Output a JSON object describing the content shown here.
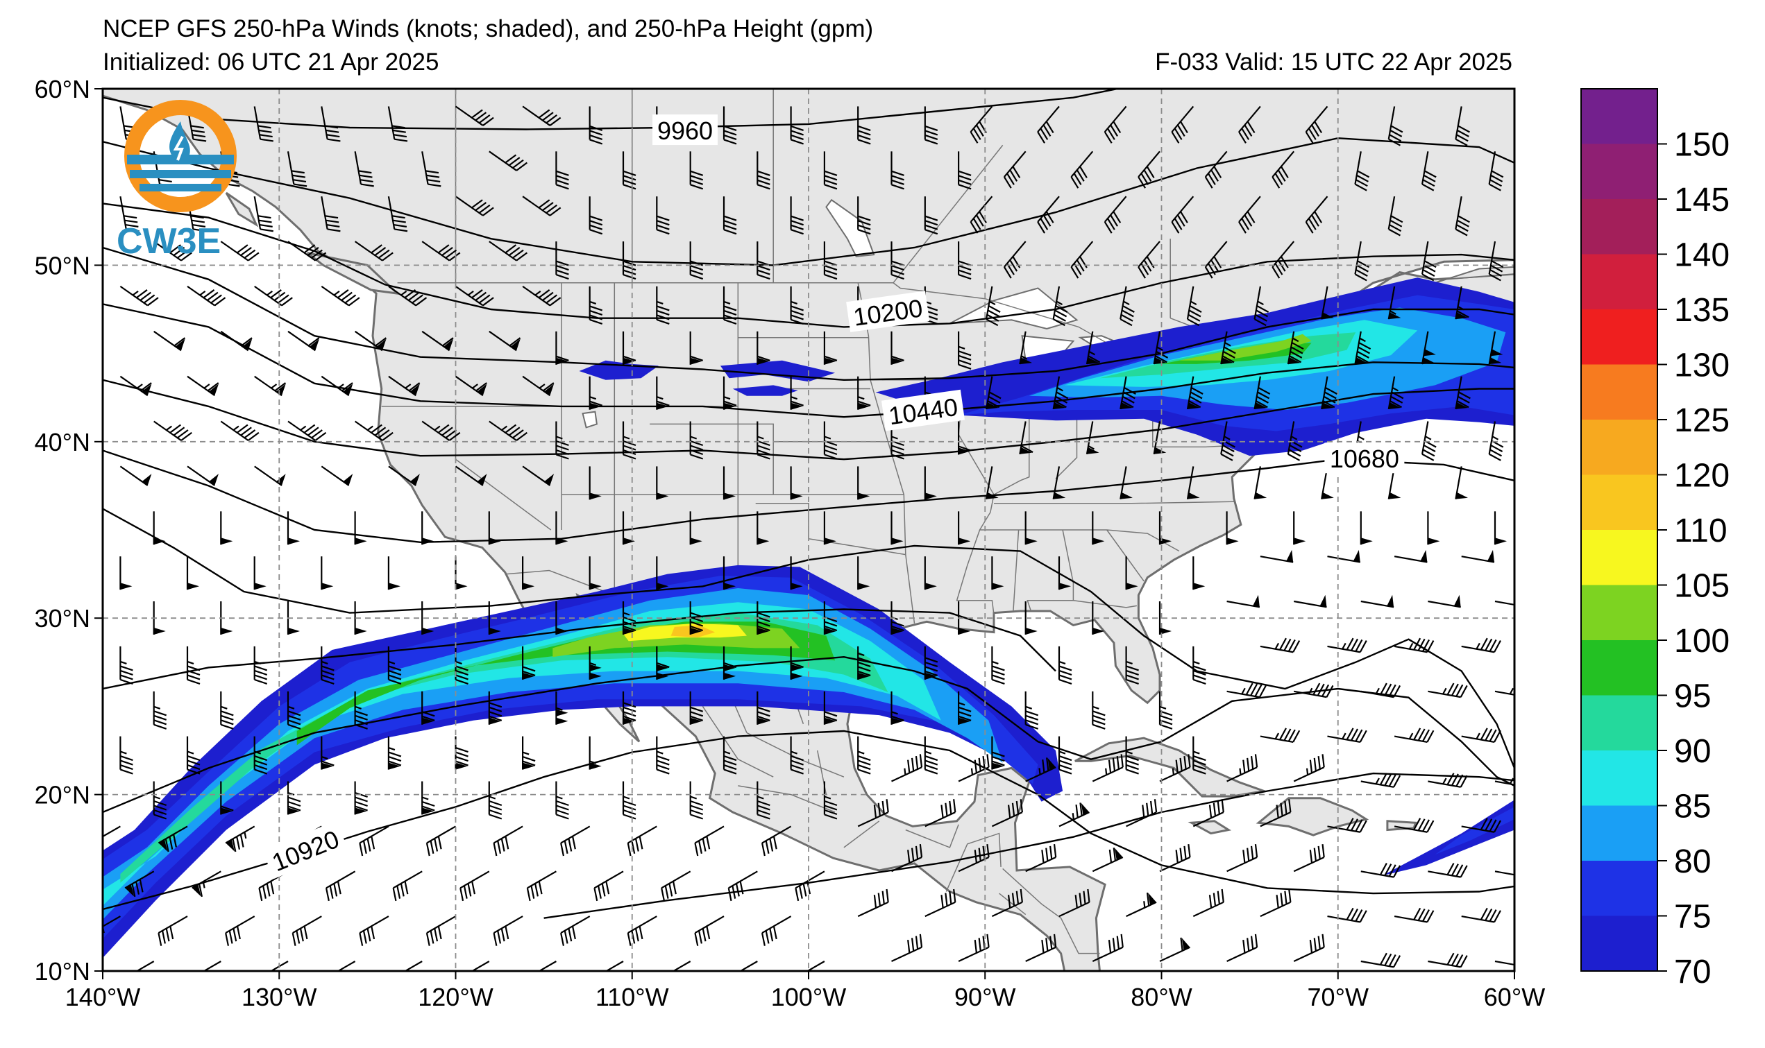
{
  "header": {
    "title": "NCEP GFS 250-hPa Winds (knots; shaded), and 250-hPa Height (gpm)",
    "initialized": "Initialized: 06 UTC 21 Apr 2025",
    "valid": "F-033  Valid: 15 UTC 22 Apr 2025"
  },
  "logo": {
    "text": "CW3E",
    "colors": {
      "orange": "#f7941d",
      "blue": "#2a8fc1"
    }
  },
  "map": {
    "extent": {
      "lon_min": -140,
      "lon_max": -60,
      "lat_min": 10,
      "lat_max": 60
    },
    "lon_ticks": [
      {
        "value": -140,
        "label": "140°W"
      },
      {
        "value": -130,
        "label": "130°W"
      },
      {
        "value": -120,
        "label": "120°W"
      },
      {
        "value": -110,
        "label": "110°W"
      },
      {
        "value": -100,
        "label": "100°W"
      },
      {
        "value": -90,
        "label": "90°W"
      },
      {
        "value": -80,
        "label": "80°W"
      },
      {
        "value": -70,
        "label": "70°W"
      },
      {
        "value": -60,
        "label": "60°W"
      }
    ],
    "lat_ticks": [
      {
        "value": 60,
        "label": "60°N"
      },
      {
        "value": 50,
        "label": "50°N"
      },
      {
        "value": 40,
        "label": "40°N"
      },
      {
        "value": 30,
        "label": "30°N"
      },
      {
        "value": 20,
        "label": "20°N"
      },
      {
        "value": 10,
        "label": "10°N"
      }
    ],
    "gridlines": true,
    "colors": {
      "ocean": "#ffffff",
      "land": "#e6e6e6",
      "coast": "#6e6e6e",
      "grid": "#8c8c8c"
    },
    "height_contour_labels": [
      {
        "value": "9960",
        "lon": -107,
        "lat": 57.6
      },
      {
        "value": "10200",
        "lon": -95.5,
        "lat": 47.3
      },
      {
        "value": "10440",
        "lon": -93.5,
        "lat": 41.7
      },
      {
        "value": "10680",
        "lon": -68.5,
        "lat": 39.0
      },
      {
        "value": "10920",
        "lon": -128.5,
        "lat": 16.8
      }
    ]
  },
  "colorbar": {
    "levels": [
      {
        "value": 70,
        "label": "70",
        "color": "#1d1fcf"
      },
      {
        "value": 75,
        "label": "75",
        "color": "#1e32e6"
      },
      {
        "value": 80,
        "label": "80",
        "color": "#1a9ff5"
      },
      {
        "value": 85,
        "label": "85",
        "color": "#22e6e6"
      },
      {
        "value": 90,
        "label": "90",
        "color": "#24d99c"
      },
      {
        "value": 95,
        "label": "95",
        "color": "#23c123"
      },
      {
        "value": 100,
        "label": "100",
        "color": "#7dd321"
      },
      {
        "value": 105,
        "label": "105",
        "color": "#f7f71f"
      },
      {
        "value": 110,
        "label": "110",
        "color": "#f9c61f"
      },
      {
        "value": 120,
        "label": "120",
        "color": "#f7a91f"
      },
      {
        "value": 125,
        "label": "125",
        "color": "#f77b1f"
      },
      {
        "value": 130,
        "label": "130",
        "color": "#ef1f1f"
      },
      {
        "value": 135,
        "label": "135",
        "color": "#d11f3d"
      },
      {
        "value": 140,
        "label": "140",
        "color": "#a31f5a"
      },
      {
        "value": 145,
        "label": "145",
        "color": "#8f1f73"
      },
      {
        "value": 150,
        "label": "150",
        "color": "#73208d"
      }
    ]
  }
}
